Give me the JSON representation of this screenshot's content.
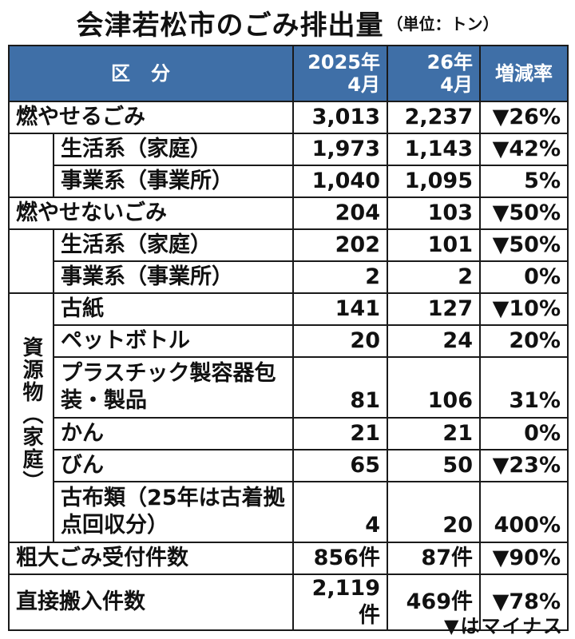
{
  "title": "会津若松市のごみ排出量",
  "unit": "（単位：トン）",
  "header": {
    "category": "区分",
    "col_2025": [
      "2025年",
      "4月"
    ],
    "col_2026": [
      "26年",
      "4月"
    ],
    "rate": "増減率"
  },
  "groups": {
    "burnable": {
      "label": "燃やせるごみ",
      "total": {
        "v2025": "3,013",
        "v2026": "2,237",
        "rate": "▼26%"
      },
      "household": {
        "label": "生活系（家庭）",
        "v2025": "1,973",
        "v2026": "1,143",
        "rate": "▼42%"
      },
      "business": {
        "label": "事業系（事業所）",
        "v2025": "1,040",
        "v2026": "1,095",
        "rate": "5%"
      }
    },
    "nonburnable": {
      "label": "燃やせないごみ",
      "total": {
        "v2025": "204",
        "v2026": "103",
        "rate": "▼50%"
      },
      "household": {
        "label": "生活系（家庭）",
        "v2025": "202",
        "v2026": "101",
        "rate": "▼50%"
      },
      "business": {
        "label": "事業系（事業所）",
        "v2025": "2",
        "v2026": "2",
        "rate": "0%"
      }
    },
    "resources": {
      "label": "資源物（家庭）",
      "items": [
        {
          "label": "古紙",
          "v2025": "141",
          "v2026": "127",
          "rate": "▼10%"
        },
        {
          "label": "ペットボトル",
          "v2025": "20",
          "v2026": "24",
          "rate": "20%"
        },
        {
          "label": "プラスチック製容器包装・製品",
          "v2025": "81",
          "v2026": "106",
          "rate": "31%"
        },
        {
          "label": "かん",
          "v2025": "21",
          "v2026": "21",
          "rate": "0%"
        },
        {
          "label": "びん",
          "v2025": "65",
          "v2026": "50",
          "rate": "▼23%"
        },
        {
          "label": "古布類（25年は古着拠点回収分）",
          "v2025": "4",
          "v2026": "20",
          "rate": "400%"
        }
      ]
    }
  },
  "bulky": {
    "label": "粗大ごみ受付件数",
    "v2025": "856件",
    "v2026": "87件",
    "rate": "▼90%"
  },
  "direct": {
    "label": "直接搬入件数",
    "v2025": "2,119件",
    "v2026": "469件",
    "rate": "▼78%"
  },
  "note": "▼はマイナス"
}
